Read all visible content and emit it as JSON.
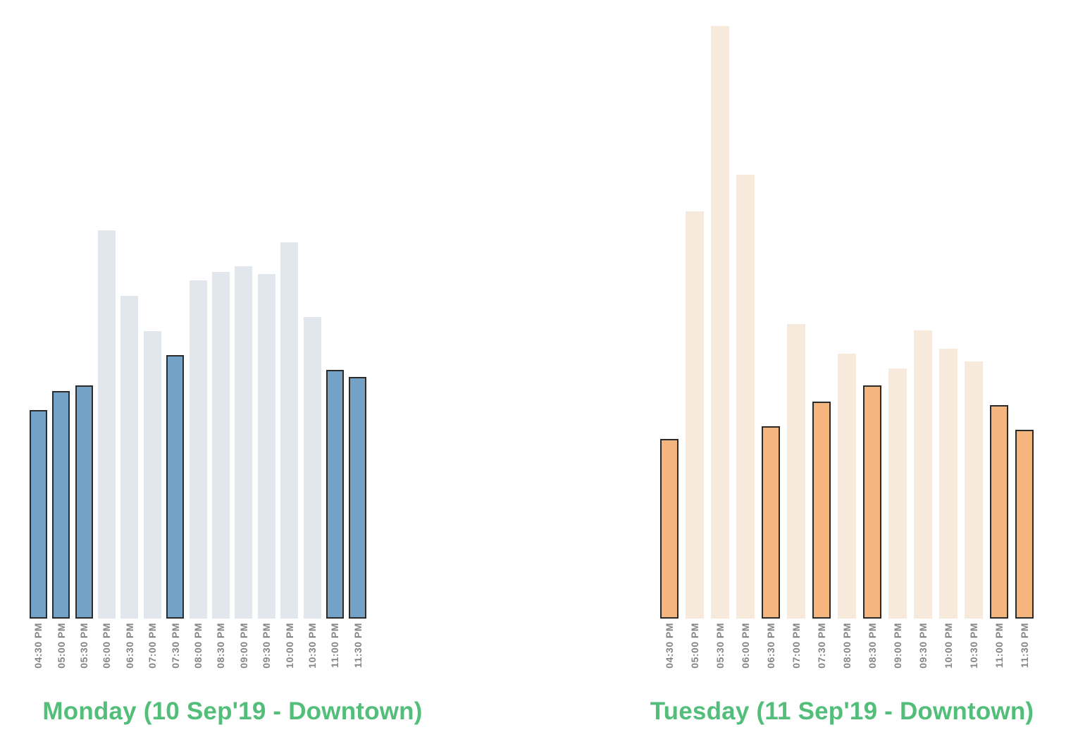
{
  "page": {
    "background": "#ffffff"
  },
  "chart_data": [
    {
      "type": "bar",
      "title": "Monday (10 Sep'19 - Downtown)",
      "categories": [
        "04:30 PM",
        "05:00 PM",
        "05:30 PM",
        "06:00 PM",
        "06:30 PM",
        "07:00 PM",
        "07:30 PM",
        "08:00 PM",
        "08:30 PM",
        "09:00 PM",
        "09:30 PM",
        "10:00 PM",
        "10:30 PM",
        "11:00 PM",
        "11:30 PM"
      ],
      "values": [
        296,
        323,
        331,
        551,
        458,
        408,
        374,
        480,
        492,
        500,
        489,
        534,
        428,
        353,
        343
      ],
      "values_unit": "relative height (px), no y-axis shown",
      "highlight": [
        true,
        true,
        true,
        false,
        false,
        false,
        true,
        false,
        false,
        false,
        false,
        false,
        false,
        true,
        true
      ],
      "highlighted_categories": [
        "04:30 PM",
        "05:00 PM",
        "05:30 PM",
        "07:30 PM",
        "11:00 PM",
        "11:30 PM"
      ],
      "colors": {
        "highlight_fill": "#73a2c6",
        "muted_fill": "#e2e7ee",
        "bar_border": "#2b2b2b",
        "title": "#53be7a",
        "tick_label": "#858585"
      },
      "layout": {
        "x_tick_rotation": -90,
        "grid": false,
        "legend": false,
        "ylim": [
          0,
          880
        ]
      }
    },
    {
      "type": "bar",
      "title": "Tuesday (11 Sep'19 - Downtown)",
      "categories": [
        "04:30 PM",
        "05:00 PM",
        "05:30 PM",
        "06:00 PM",
        "06:30 PM",
        "07:00 PM",
        "07:30 PM",
        "08:00 PM",
        "08:30 PM",
        "09:00 PM",
        "09:30 PM",
        "10:00 PM",
        "10:30 PM",
        "11:00 PM",
        "11:30 PM"
      ],
      "values": [
        255,
        578,
        841,
        630,
        273,
        418,
        308,
        376,
        331,
        355,
        409,
        383,
        365,
        303,
        268
      ],
      "values_unit": "relative height (px), no y-axis shown",
      "highlight": [
        true,
        false,
        false,
        false,
        true,
        false,
        true,
        false,
        true,
        false,
        false,
        false,
        false,
        true,
        true
      ],
      "highlighted_categories": [
        "04:30 PM",
        "06:30 PM",
        "07:30 PM",
        "08:30 PM",
        "11:00 PM",
        "11:30 PM"
      ],
      "colors": {
        "highlight_fill": "#f4b57f",
        "muted_fill": "#f8e9dd",
        "bar_border": "#2b2b2b",
        "title": "#53be7a",
        "tick_label": "#858585"
      },
      "layout": {
        "x_tick_rotation": -90,
        "grid": false,
        "legend": false,
        "ylim": [
          0,
          880
        ]
      }
    }
  ]
}
